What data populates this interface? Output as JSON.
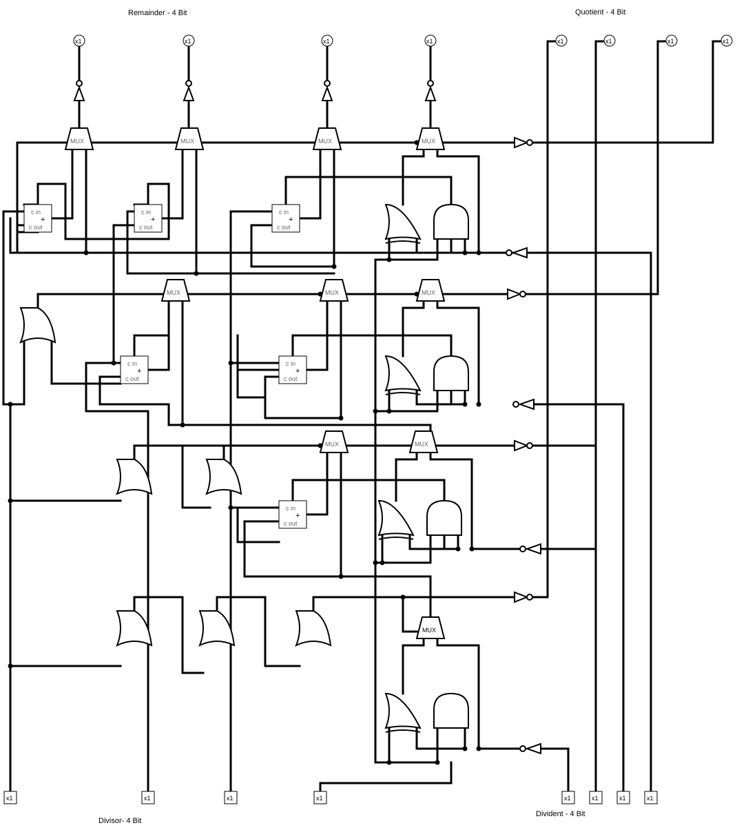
{
  "labels": {
    "remainder": "Remainder - 4 Bit",
    "quotient": "Quotient - 4 Bit",
    "divisor": "Divisor- 4 Bit",
    "divident": "Divident - 4 Bit"
  },
  "pins": {
    "width_label": "x1",
    "outputs_remainder": 4,
    "outputs_quotient": 4,
    "inputs_divisor": 4,
    "inputs_divident": 4
  },
  "components": {
    "mux": "MUX",
    "adder_cin": "c in",
    "adder_cout": "c out",
    "adder_symbol": "+"
  }
}
